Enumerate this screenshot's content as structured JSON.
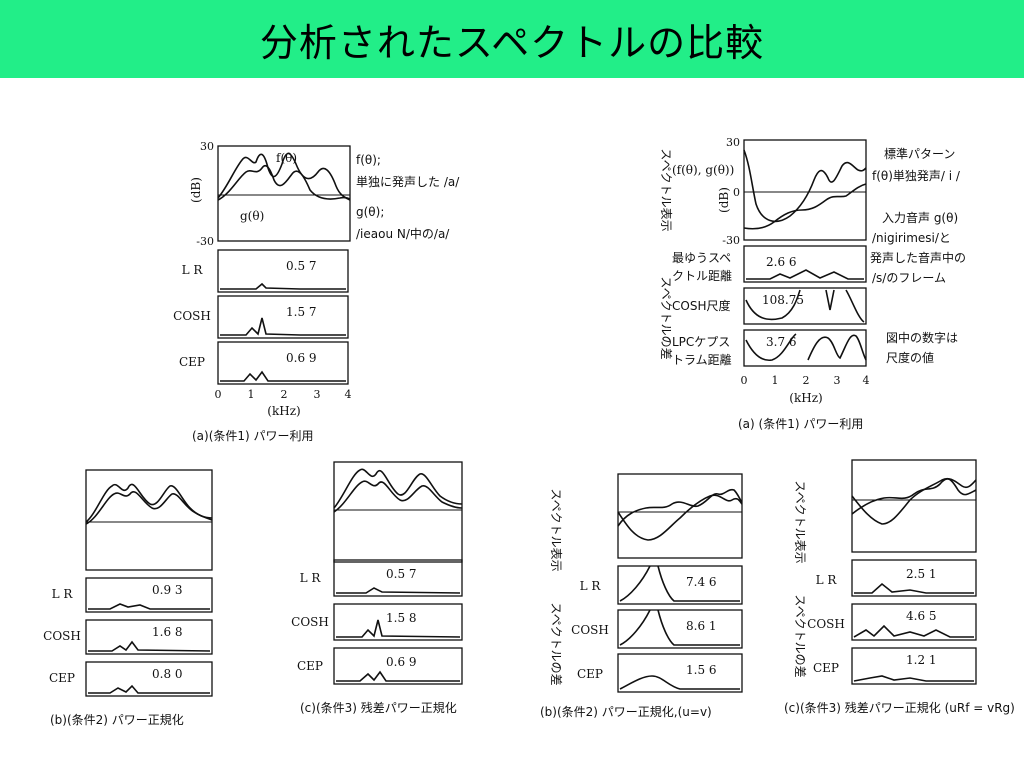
{
  "page": {
    "title": "分析されたスペクトルの比較",
    "title_bg": "#22ee88"
  },
  "fig_a_left": {
    "ytop": "30",
    "ybot": "-30",
    "yunit": "(dB)",
    "f_label": "f(θ)",
    "g_label": "g(θ)",
    "note1_a": "f(θ);",
    "note1_b": "単独に発声した /a/",
    "note2_a": "g(θ);",
    "note2_b": "/ieaou N/中の/a/",
    "rows": [
      {
        "label": "L R",
        "value": "0.5 7"
      },
      {
        "label": "COSH",
        "value": "1.5 7"
      },
      {
        "label": "CEP",
        "value": "0.6 9"
      }
    ],
    "xticks": [
      "0",
      "1",
      "2",
      "3",
      "4"
    ],
    "xunit": "(kHz)",
    "caption": "(a)(条件1) パワー利用"
  },
  "fig_b_left": {
    "rows": [
      {
        "label": "L R",
        "value": "0.9 3"
      },
      {
        "label": "COSH",
        "value": "1.6 8"
      },
      {
        "label": "CEP",
        "value": "0.8 0"
      }
    ],
    "caption": "(b)(条件2) パワー正規化"
  },
  "fig_c_left": {
    "rows": [
      {
        "label": "L R",
        "value": "0.5 7"
      },
      {
        "label": "COSH",
        "value": "1.5 8"
      },
      {
        "label": "CEP",
        "value": "0.6 9"
      }
    ],
    "caption": "(c)(条件3) 残差パワー正規化"
  },
  "fig_a_right": {
    "ytop": "30",
    "yzero": "0",
    "ybot": "-30",
    "yunit": "(dB)",
    "side_top": "スペクトル表示",
    "side_bottom": "スペクトルの差",
    "fg_label": "(f(θ), g(θ))",
    "note1_a": "標準パターン",
    "note1_b": "f(θ)単独発声/ i /",
    "note2_a": "入力音声 g(θ)",
    "note2_b": "/nigirimesi/と",
    "note2_c": "発声した音声中の",
    "note2_d": "/s/のフレーム",
    "rows": [
      {
        "label1": "最ゆうスペ",
        "label2": "クトル距離",
        "value": "2.6 6"
      },
      {
        "label1": "COSH尺度",
        "label2": "",
        "value": "108.75"
      },
      {
        "label1": "LPCケプス",
        "label2": "トラム距離",
        "value": "3.7 6"
      }
    ],
    "note3_a": "図中の数字は",
    "note3_b": "尺度の値",
    "xticks": [
      "0",
      "1",
      "2",
      "3",
      "4"
    ],
    "xunit": "(kHz)",
    "caption": "(a) (条件1) パワー利用"
  },
  "fig_b_right": {
    "side_top": "スペクトル表示",
    "side_bottom": "スペクトルの差",
    "rows": [
      {
        "label": "L R",
        "value": "7.4 6"
      },
      {
        "label": "COSH",
        "value": "8.6 1"
      },
      {
        "label": "CEP",
        "value": "1.5 6"
      }
    ],
    "caption": "(b)(条件2) パワー正規化,(u=v)"
  },
  "fig_c_right": {
    "side_top": "スペクトル表示",
    "side_bottom": "スペクトルの差",
    "rows": [
      {
        "label": "L R",
        "value": "2.5 1"
      },
      {
        "label": "COSH",
        "value": "4.6 5"
      },
      {
        "label": "CEP",
        "value": "1.2 1"
      }
    ],
    "caption": "(c)(条件3) 残差パワー正規化 (uRf = vRg)"
  }
}
